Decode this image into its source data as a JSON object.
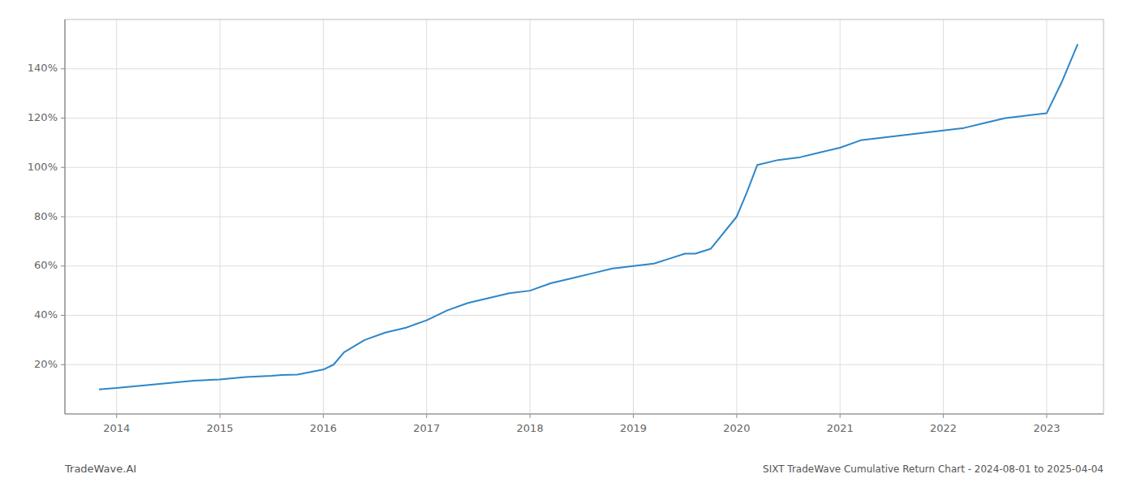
{
  "chart_data": {
    "type": "line",
    "title": "SIXT TradeWave Cumulative Return Chart - 2024-08-01 to 2025-04-04",
    "annotations": [
      "TradeWave.AI"
    ],
    "color": "#2e86c8",
    "grid": true,
    "x": [
      2013.83,
      2014.0,
      2014.25,
      2014.5,
      2014.75,
      2015.0,
      2015.25,
      2015.5,
      2015.6,
      2015.75,
      2016.0,
      2016.1,
      2016.2,
      2016.4,
      2016.6,
      2016.8,
      2017.0,
      2017.2,
      2017.4,
      2017.6,
      2017.8,
      2018.0,
      2018.2,
      2018.4,
      2018.6,
      2018.8,
      2019.0,
      2019.2,
      2019.35,
      2019.5,
      2019.6,
      2019.75,
      2020.0,
      2020.1,
      2020.2,
      2020.4,
      2020.6,
      2020.8,
      2021.0,
      2021.2,
      2021.4,
      2021.6,
      2021.8,
      2022.0,
      2022.2,
      2022.4,
      2022.5,
      2022.6,
      2022.8,
      2023.0,
      2023.15,
      2023.3
    ],
    "values": [
      10,
      10.5,
      11.5,
      12.5,
      13.5,
      14,
      15,
      15.5,
      15.8,
      16,
      18,
      20,
      25,
      30,
      33,
      35,
      38,
      42,
      45,
      47,
      49,
      50,
      53,
      55,
      57,
      59,
      60,
      61,
      63,
      65,
      65,
      67,
      80,
      90,
      101,
      103,
      104,
      106,
      108,
      111,
      112,
      113,
      114,
      115,
      116,
      118,
      119,
      120,
      121,
      122,
      135,
      150
    ],
    "xlim": [
      2013.5,
      2023.55
    ],
    "xticks": [
      2014,
      2015,
      2016,
      2017,
      2018,
      2019,
      2020,
      2021,
      2022,
      2023
    ],
    "ylim": [
      0,
      160
    ],
    "yticks": [
      {
        "value": 20,
        "label": "20%"
      },
      {
        "value": 40,
        "label": "40%"
      },
      {
        "value": 60,
        "label": "60%"
      },
      {
        "value": 80,
        "label": "80%"
      },
      {
        "value": 100,
        "label": "100%"
      },
      {
        "value": 120,
        "label": "120%"
      },
      {
        "value": 140,
        "label": "140%"
      }
    ]
  }
}
